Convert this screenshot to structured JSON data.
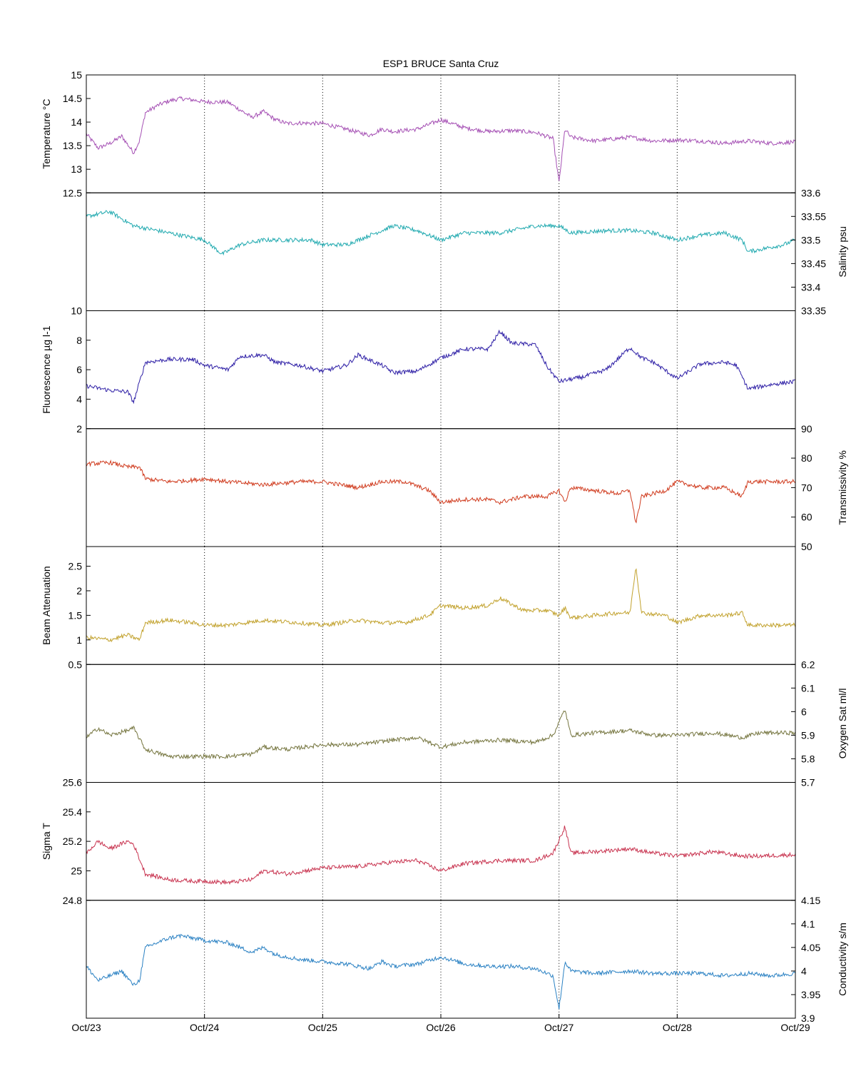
{
  "title": "ESP1 BRUCE Santa Cruz",
  "x_tick_labels": [
    "Oct/23",
    "Oct/24",
    "Oct/25",
    "Oct/26",
    "Oct/27",
    "Oct/28",
    "Oct/29"
  ],
  "chart_data": [
    {
      "type": "line",
      "id": "temperature",
      "ylabel": "Temperature °C",
      "axis_side": "left",
      "ylim": [
        12.5,
        15
      ],
      "ytick_values": [
        12.5,
        13,
        13.5,
        14,
        14.5,
        15
      ],
      "ytick_labels": [
        "12.5",
        "13",
        "13.5",
        "14",
        "14.5",
        "15"
      ],
      "color": "#a550b4",
      "grid": "vertical dotted",
      "x": [
        0,
        0.1,
        0.2,
        0.3,
        0.4,
        0.45,
        0.5,
        0.6,
        0.7,
        0.8,
        0.9,
        1.0,
        1.2,
        1.4,
        1.5,
        1.6,
        1.7,
        1.8,
        2.0,
        2.2,
        2.4,
        2.5,
        2.6,
        2.8,
        3.0,
        3.2,
        3.4,
        3.6,
        3.8,
        3.95,
        4.0,
        4.05,
        4.1,
        4.3,
        4.6,
        4.8,
        5.0,
        5.2,
        5.4,
        5.6,
        5.8,
        6.0
      ],
      "values": [
        13.75,
        13.45,
        13.55,
        13.7,
        13.35,
        13.6,
        14.2,
        14.35,
        14.45,
        14.5,
        14.47,
        14.43,
        14.42,
        14.1,
        14.22,
        14.05,
        13.97,
        13.98,
        13.97,
        13.85,
        13.72,
        13.85,
        13.8,
        13.85,
        14.05,
        13.88,
        13.8,
        13.82,
        13.78,
        13.65,
        12.72,
        13.85,
        13.68,
        13.6,
        13.68,
        13.6,
        13.62,
        13.6,
        13.55,
        13.6,
        13.55,
        13.58
      ]
    },
    {
      "type": "line",
      "id": "salinity",
      "ylabel": "Salinity psu",
      "axis_side": "right",
      "ylim": [
        33.35,
        33.6
      ],
      "ytick_values": [
        33.35,
        33.4,
        33.45,
        33.5,
        33.55,
        33.6
      ],
      "ytick_labels": [
        "33.35",
        "33.4",
        "33.45",
        "33.5",
        "33.55",
        "33.6"
      ],
      "color": "#22aab0",
      "grid": "vertical dotted",
      "x": [
        0,
        0.2,
        0.4,
        0.6,
        0.8,
        1.0,
        1.15,
        1.3,
        1.5,
        1.7,
        1.9,
        2.0,
        2.2,
        2.4,
        2.6,
        2.8,
        3.0,
        3.2,
        3.5,
        3.8,
        4.0,
        4.1,
        4.4,
        4.6,
        4.8,
        5.0,
        5.2,
        5.4,
        5.55,
        5.6,
        5.7,
        5.8,
        5.9,
        6.0
      ],
      "values": [
        33.55,
        33.56,
        33.53,
        33.52,
        33.51,
        33.5,
        33.47,
        33.49,
        33.5,
        33.5,
        33.5,
        33.49,
        33.49,
        33.51,
        33.53,
        33.52,
        33.5,
        33.515,
        33.515,
        33.53,
        33.53,
        33.515,
        33.52,
        33.52,
        33.515,
        33.5,
        33.51,
        33.515,
        33.5,
        33.475,
        33.48,
        33.485,
        33.49,
        33.5
      ]
    },
    {
      "type": "line",
      "id": "fluorescence",
      "ylabel": "Fluorescence µg l-1",
      "axis_side": "left",
      "ylim": [
        2,
        10
      ],
      "ytick_values": [
        2,
        4,
        6,
        8,
        10
      ],
      "ytick_labels": [
        "2",
        "4",
        "6",
        "8",
        "10"
      ],
      "color": "#2e1fa6",
      "grid": "vertical dotted",
      "x": [
        0,
        0.2,
        0.35,
        0.4,
        0.5,
        0.7,
        0.9,
        1.0,
        1.2,
        1.3,
        1.5,
        1.6,
        1.8,
        2.0,
        2.2,
        2.3,
        2.5,
        2.6,
        2.8,
        3.0,
        3.2,
        3.4,
        3.5,
        3.6,
        3.8,
        3.9,
        4.0,
        4.2,
        4.4,
        4.6,
        4.7,
        4.8,
        5.0,
        5.2,
        5.4,
        5.5,
        5.6,
        5.8,
        6.0
      ],
      "values": [
        4.9,
        4.6,
        4.5,
        3.8,
        6.5,
        6.7,
        6.7,
        6.3,
        6.0,
        6.9,
        7.0,
        6.5,
        6.3,
        5.9,
        6.3,
        7.0,
        6.3,
        5.8,
        5.9,
        6.8,
        7.4,
        7.4,
        8.6,
        7.8,
        7.7,
        6.2,
        5.2,
        5.5,
        6.0,
        7.5,
        6.8,
        6.5,
        5.4,
        6.4,
        6.5,
        6.3,
        4.7,
        5.0,
        5.2
      ]
    },
    {
      "type": "line",
      "id": "transmissivity",
      "ylabel": "Transmissivity %",
      "axis_side": "right",
      "ylim": [
        50,
        90
      ],
      "ytick_values": [
        50,
        60,
        70,
        80,
        90
      ],
      "ytick_labels": [
        "50",
        "60",
        "70",
        "80",
        "90"
      ],
      "color": "#d03c1f",
      "grid": "vertical dotted",
      "x": [
        0,
        0.2,
        0.35,
        0.45,
        0.5,
        0.7,
        0.9,
        1.0,
        1.2,
        1.5,
        1.8,
        2.0,
        2.3,
        2.5,
        2.7,
        2.9,
        3.0,
        3.2,
        3.4,
        3.5,
        3.7,
        3.9,
        4.0,
        4.05,
        4.1,
        4.3,
        4.5,
        4.6,
        4.65,
        4.7,
        4.9,
        5.0,
        5.2,
        5.4,
        5.55,
        5.6,
        5.8,
        6.0
      ],
      "values": [
        78,
        78.5,
        77,
        77,
        73,
        72,
        72.5,
        73,
        72,
        71,
        72,
        72,
        70,
        72,
        72,
        69,
        65,
        66,
        66,
        65,
        67,
        67,
        69,
        65,
        70,
        69,
        68,
        69,
        58,
        67,
        69,
        72,
        70,
        70,
        67,
        72,
        72,
        72
      ]
    },
    {
      "type": "line",
      "id": "beam_attenuation",
      "ylabel": "Beam Attenuation",
      "axis_side": "left",
      "ylim": [
        0.5,
        2.9
      ],
      "ytick_values": [
        0.5,
        1,
        1.5,
        2,
        2.5
      ],
      "ytick_labels": [
        "0.5",
        "1",
        "1.5",
        "2",
        "2.5"
      ],
      "color": "#c2a22e",
      "grid": "vertical dotted",
      "x": [
        0,
        0.2,
        0.35,
        0.45,
        0.5,
        0.7,
        0.9,
        1.0,
        1.2,
        1.5,
        1.8,
        2.0,
        2.3,
        2.5,
        2.7,
        2.9,
        3.0,
        3.2,
        3.4,
        3.5,
        3.7,
        3.9,
        4.0,
        4.05,
        4.1,
        4.3,
        4.5,
        4.6,
        4.65,
        4.7,
        4.9,
        5.0,
        5.2,
        5.4,
        5.55,
        5.6,
        5.8,
        6.0
      ],
      "values": [
        1.05,
        1.0,
        1.1,
        1.0,
        1.35,
        1.4,
        1.35,
        1.3,
        1.3,
        1.4,
        1.35,
        1.3,
        1.4,
        1.35,
        1.35,
        1.5,
        1.7,
        1.65,
        1.7,
        1.85,
        1.6,
        1.6,
        1.5,
        1.65,
        1.45,
        1.5,
        1.55,
        1.55,
        2.5,
        1.55,
        1.5,
        1.35,
        1.5,
        1.5,
        1.55,
        1.3,
        1.3,
        1.3
      ]
    },
    {
      "type": "line",
      "id": "oxygen_sat",
      "ylabel": "Oxygen Sat ml/l",
      "axis_side": "right",
      "ylim": [
        5.7,
        6.2
      ],
      "ytick_values": [
        5.7,
        5.8,
        5.9,
        6,
        6.1,
        6.2
      ],
      "ytick_labels": [
        "5.7",
        "5.8",
        "5.9",
        "6",
        "6.1",
        "6.2"
      ],
      "color": "#767640",
      "grid": "vertical dotted",
      "x": [
        0,
        0.1,
        0.2,
        0.35,
        0.4,
        0.5,
        0.7,
        0.9,
        1.0,
        1.2,
        1.4,
        1.5,
        1.7,
        2.0,
        2.3,
        2.6,
        2.8,
        3.0,
        3.2,
        3.5,
        3.8,
        3.95,
        4.05,
        4.1,
        4.3,
        4.6,
        4.8,
        5.0,
        5.3,
        5.55,
        5.7,
        6.0
      ],
      "values": [
        5.89,
        5.93,
        5.9,
        5.92,
        5.93,
        5.84,
        5.81,
        5.81,
        5.81,
        5.81,
        5.82,
        5.85,
        5.84,
        5.86,
        5.86,
        5.88,
        5.89,
        5.85,
        5.87,
        5.88,
        5.87,
        5.9,
        6.01,
        5.9,
        5.91,
        5.92,
        5.9,
        5.9,
        5.91,
        5.89,
        5.91,
        5.91
      ]
    },
    {
      "type": "line",
      "id": "sigma_t",
      "ylabel": "Sigma T",
      "axis_side": "left",
      "ylim": [
        24.8,
        25.6
      ],
      "ytick_values": [
        24.8,
        25,
        25.2,
        25.4,
        25.6
      ],
      "ytick_labels": [
        "24.8",
        "25",
        "25.2",
        "25.4",
        "25.6"
      ],
      "color": "#c8334f",
      "grid": "vertical dotted",
      "x": [
        0,
        0.1,
        0.2,
        0.35,
        0.4,
        0.5,
        0.7,
        0.9,
        1.0,
        1.2,
        1.4,
        1.5,
        1.7,
        2.0,
        2.3,
        2.6,
        2.8,
        3.0,
        3.2,
        3.5,
        3.8,
        3.95,
        4.05,
        4.1,
        4.3,
        4.6,
        4.8,
        5.0,
        5.3,
        5.55,
        5.7,
        6.0
      ],
      "values": [
        25.12,
        25.2,
        25.15,
        25.2,
        25.18,
        24.98,
        24.94,
        24.93,
        24.93,
        24.92,
        24.94,
        25.0,
        24.98,
        25.02,
        25.03,
        25.06,
        25.07,
        25.0,
        25.05,
        25.07,
        25.07,
        25.12,
        25.3,
        25.12,
        25.13,
        25.15,
        25.12,
        25.1,
        25.13,
        25.1,
        25.1,
        25.11
      ]
    },
    {
      "type": "line",
      "id": "conductivity",
      "ylabel": "Conductivity s/m",
      "axis_side": "right",
      "ylim": [
        3.9,
        4.15
      ],
      "ytick_values": [
        3.9,
        3.95,
        4,
        4.05,
        4.1,
        4.15
      ],
      "ytick_labels": [
        "3.9",
        "3.95",
        "4",
        "4.05",
        "4.1",
        "4.15"
      ],
      "color": "#2a81c3",
      "grid": "vertical dotted",
      "x": [
        0,
        0.1,
        0.2,
        0.3,
        0.4,
        0.45,
        0.5,
        0.6,
        0.7,
        0.8,
        0.9,
        1.0,
        1.2,
        1.4,
        1.5,
        1.6,
        1.7,
        1.8,
        2.0,
        2.2,
        2.4,
        2.5,
        2.6,
        2.8,
        3.0,
        3.2,
        3.4,
        3.6,
        3.8,
        3.95,
        4.0,
        4.05,
        4.1,
        4.3,
        4.6,
        4.8,
        5.0,
        5.2,
        5.4,
        5.6,
        5.8,
        6.0
      ],
      "values": [
        4.01,
        3.98,
        3.99,
        4.0,
        3.97,
        3.98,
        4.05,
        4.06,
        4.07,
        4.075,
        4.07,
        4.065,
        4.06,
        4.04,
        4.05,
        4.035,
        4.03,
        4.025,
        4.02,
        4.015,
        4.005,
        4.02,
        4.01,
        4.015,
        4.03,
        4.015,
        4.01,
        4.01,
        4.005,
        3.99,
        3.92,
        4.02,
        4.0,
        3.995,
        4.0,
        3.995,
        3.995,
        3.995,
        3.99,
        3.995,
        3.99,
        3.995
      ]
    }
  ]
}
